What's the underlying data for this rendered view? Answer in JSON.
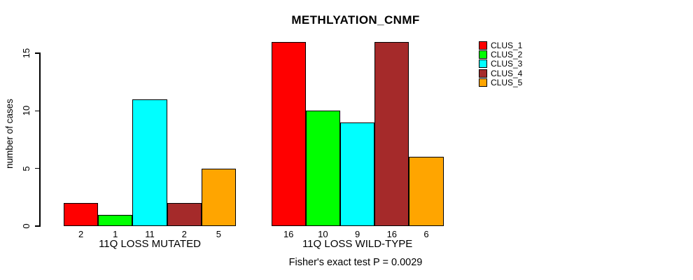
{
  "chart_data": {
    "type": "bar",
    "title": "METHLYATION_CNMF",
    "ylabel": "number of cases",
    "ylim": [
      0,
      15
    ],
    "yticks": [
      0,
      5,
      10,
      15
    ],
    "grid": false,
    "legend_position": "right-top",
    "categories": [
      "11Q LOSS MUTATED",
      "11Q LOSS WILD-TYPE"
    ],
    "series": [
      {
        "name": "CLUS_1",
        "color": "#ff0000",
        "values": [
          2,
          16
        ]
      },
      {
        "name": "CLUS_2",
        "color": "#00ff00",
        "values": [
          1,
          10
        ]
      },
      {
        "name": "CLUS_3",
        "color": "#00ffff",
        "values": [
          11,
          9
        ]
      },
      {
        "name": "CLUS_4",
        "color": "#a52a2a",
        "values": [
          2,
          16
        ]
      },
      {
        "name": "CLUS_5",
        "color": "#ffa500",
        "values": [
          5,
          6
        ]
      }
    ],
    "bar_value_labels": [
      [
        "2",
        "1",
        "11",
        "2",
        "5"
      ],
      [
        "16",
        "10",
        "9",
        "16",
        "6"
      ]
    ],
    "annotation": "Fisher's exact test P = 0.0029"
  }
}
